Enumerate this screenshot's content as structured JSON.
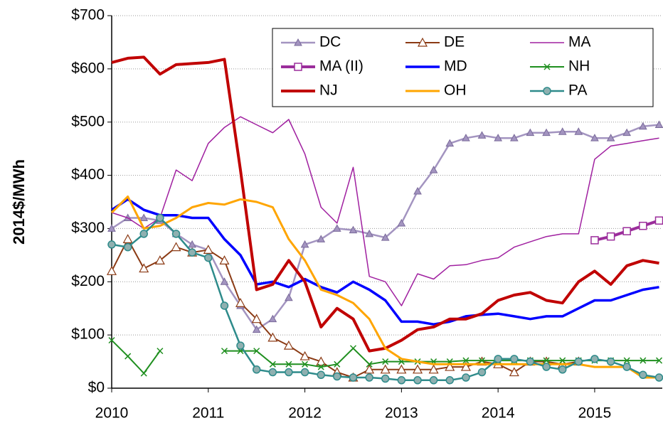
{
  "chart_data": {
    "type": "line",
    "y_label": "2014$/MWh",
    "x": [
      2010,
      2010.167,
      2010.333,
      2010.5,
      2010.667,
      2010.833,
      2011,
      2011.167,
      2011.333,
      2011.5,
      2011.667,
      2011.833,
      2012,
      2012.167,
      2012.333,
      2012.5,
      2012.667,
      2012.833,
      2013,
      2013.167,
      2013.333,
      2013.5,
      2013.667,
      2013.833,
      2014,
      2014.167,
      2014.333,
      2014.5,
      2014.667,
      2014.833,
      2015,
      2015.167,
      2015.333,
      2015.5,
      2015.667
    ],
    "xlim": [
      2010,
      2015.7
    ],
    "xticks": [
      2010,
      2011,
      2012,
      2013,
      2014,
      2015
    ],
    "ylim": [
      0,
      700
    ],
    "yticks": [
      {
        "value": 0,
        "label": "$0"
      },
      {
        "value": 100,
        "label": "$100"
      },
      {
        "value": 200,
        "label": "$200"
      },
      {
        "value": 300,
        "label": "$300"
      },
      {
        "value": 400,
        "label": "$400"
      },
      {
        "value": 500,
        "label": "$500"
      },
      {
        "value": 600,
        "label": "$600"
      },
      {
        "value": 700,
        "label": "$700"
      }
    ],
    "grid": true,
    "legend": "top-right",
    "series": [
      {
        "name": "DC",
        "color": "#a394c0",
        "marker": "triangle",
        "values": [
          300,
          320,
          320,
          315,
          290,
          270,
          260,
          200,
          155,
          110,
          130,
          170,
          270,
          280,
          300,
          297,
          290,
          283,
          310,
          370,
          410,
          460,
          470,
          475,
          470,
          470,
          480,
          480,
          482,
          482,
          470,
          470,
          480,
          492,
          495
        ]
      },
      {
        "name": "DE",
        "color": "#8b3a14",
        "marker": "triangle-open",
        "values": [
          220,
          280,
          225,
          240,
          265,
          255,
          260,
          240,
          160,
          130,
          95,
          80,
          60,
          50,
          30,
          20,
          35,
          35,
          35,
          35,
          35,
          40,
          40,
          50,
          45,
          30,
          50,
          50,
          45,
          50,
          null,
          null,
          null,
          null,
          null
        ]
      },
      {
        "name": "MA",
        "color": "#a020a0",
        "marker": "none",
        "values": [
          330,
          320,
          300,
          320,
          410,
          390,
          460,
          490,
          510,
          495,
          480,
          505,
          440,
          340,
          310,
          415,
          210,
          200,
          155,
          215,
          205,
          230,
          232,
          240,
          245,
          265,
          275,
          285,
          290,
          290,
          430,
          455,
          460,
          465,
          470
        ]
      },
      {
        "name": "MA (II)",
        "color": "#9b2d9b",
        "marker": "square-open",
        "values": [
          null,
          null,
          null,
          null,
          null,
          null,
          null,
          null,
          null,
          null,
          null,
          null,
          null,
          null,
          null,
          null,
          null,
          null,
          null,
          null,
          null,
          null,
          null,
          null,
          null,
          null,
          null,
          null,
          null,
          null,
          278,
          285,
          295,
          305,
          315
        ]
      },
      {
        "name": "MD",
        "color": "#0000ff",
        "marker": "none",
        "values": [
          335,
          355,
          335,
          325,
          325,
          320,
          320,
          280,
          250,
          195,
          200,
          190,
          205,
          190,
          180,
          200,
          185,
          165,
          125,
          125,
          120,
          125,
          135,
          138,
          140,
          135,
          130,
          135,
          135,
          150,
          165,
          165,
          175,
          185,
          190
        ]
      },
      {
        "name": "NH",
        "color": "#1f8f1f",
        "marker": "x",
        "values": [
          90,
          60,
          28,
          70,
          null,
          null,
          null,
          70,
          70,
          70,
          45,
          45,
          45,
          40,
          45,
          75,
          45,
          50,
          50,
          50,
          50,
          50,
          52,
          52,
          52,
          52,
          52,
          52,
          52,
          52,
          52,
          52,
          52,
          52,
          52
        ]
      },
      {
        "name": "NJ",
        "color": "#c00000",
        "marker": "none",
        "values": [
          612,
          620,
          622,
          590,
          608,
          610,
          612,
          618,
          410,
          185,
          195,
          240,
          200,
          115,
          150,
          130,
          70,
          75,
          90,
          110,
          115,
          130,
          130,
          140,
          165,
          175,
          180,
          165,
          160,
          200,
          220,
          195,
          230,
          240,
          235
        ]
      },
      {
        "name": "OH",
        "color": "#ffa500",
        "marker": "none",
        "values": [
          330,
          360,
          300,
          305,
          320,
          340,
          348,
          345,
          355,
          350,
          340,
          280,
          240,
          185,
          175,
          160,
          130,
          75,
          55,
          50,
          45,
          45,
          45,
          45,
          45,
          45,
          45,
          45,
          45,
          45,
          40,
          40,
          40,
          20,
          20
        ]
      },
      {
        "name": "PA",
        "color": "#2e8b8b",
        "marker": "circle",
        "values": [
          270,
          265,
          290,
          320,
          290,
          255,
          245,
          155,
          80,
          35,
          30,
          30,
          30,
          25,
          22,
          20,
          20,
          18,
          15,
          15,
          15,
          15,
          20,
          30,
          55,
          55,
          50,
          40,
          35,
          50,
          55,
          50,
          40,
          25,
          20
        ]
      }
    ]
  }
}
